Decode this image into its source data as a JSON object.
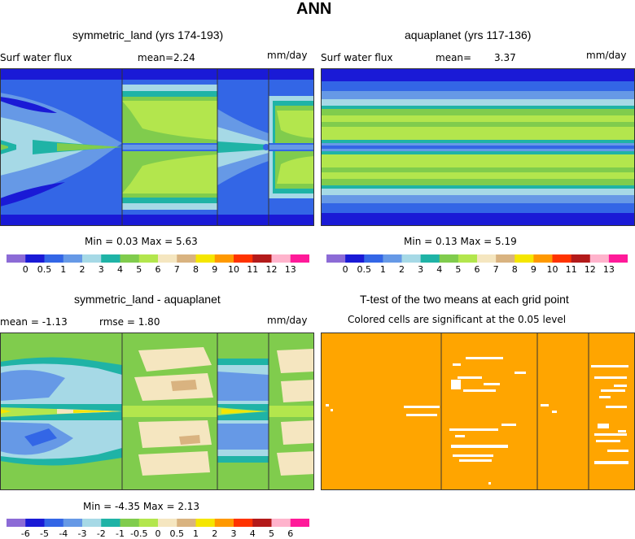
{
  "main_title": "ANN",
  "panels": [
    {
      "title": "symmetric_land (yrs 174-193)",
      "left_label": "Surf water flux",
      "mean_label": "mean=",
      "mean_value": "2.24",
      "units": "mm/day",
      "min_max": "Min =   0.03 Max =   5.63"
    },
    {
      "title": "aquaplanet (yrs 117-136)",
      "left_label": "Surf water flux",
      "mean_label": "mean=",
      "mean_value": "3.37",
      "units": "mm/day",
      "min_max": "Min =   0.13 Max =   5.19"
    },
    {
      "title": "symmetric_land - aquaplanet",
      "mean_text": "mean =  -1.13",
      "rmse_text": "rmse =   1.80",
      "units": "mm/day",
      "min_max": "Min =  -4.35 Max =   2.13"
    },
    {
      "title": "T-test of the two means at each grid point",
      "subtitle": "Colored cells are significant at the 0.05 level"
    }
  ],
  "colorbar_main": {
    "colors": [
      "#8c6bd6",
      "#1a1ad6",
      "#3366e6",
      "#6699e6",
      "#a6d9e6",
      "#1fb3a6",
      "#80cc4d",
      "#b3e64d",
      "#f5e6c0",
      "#d9b380",
      "#f5e600",
      "#ff9900",
      "#ff3300",
      "#b31a1a",
      "#ffb3cc",
      "#ff1a99"
    ],
    "labels": [
      "0",
      "0.5",
      "1",
      "2",
      "3",
      "4",
      "5",
      "6",
      "7",
      "8",
      "9",
      "10",
      "11",
      "12",
      "13"
    ]
  },
  "colorbar_diff": {
    "colors": [
      "#8c6bd6",
      "#1a1ad6",
      "#3366e6",
      "#6699e6",
      "#a6d9e6",
      "#1fb3a6",
      "#80cc4d",
      "#b3e64d",
      "#f5e6c0",
      "#d9b380",
      "#f5e600",
      "#ff9900",
      "#ff3300",
      "#b31a1a",
      "#ffb3cc",
      "#ff1a99"
    ],
    "labels": [
      "-6",
      "-5",
      "-4",
      "-3",
      "-2",
      "-1",
      "-0.5",
      "0",
      "0.5",
      "1",
      "2",
      "3",
      "4",
      "5",
      "6"
    ]
  },
  "colors": {
    "navy": "#1a1ad6",
    "blue": "#3366e6",
    "lightblue": "#6699e6",
    "cyan": "#a6d9e6",
    "teal": "#1fb3a6",
    "green": "#80cc4d",
    "lime": "#b3e64d",
    "cream": "#f5e6c0",
    "tan": "#d9b380",
    "yellow": "#f5e600",
    "orange": "#ffa500"
  }
}
